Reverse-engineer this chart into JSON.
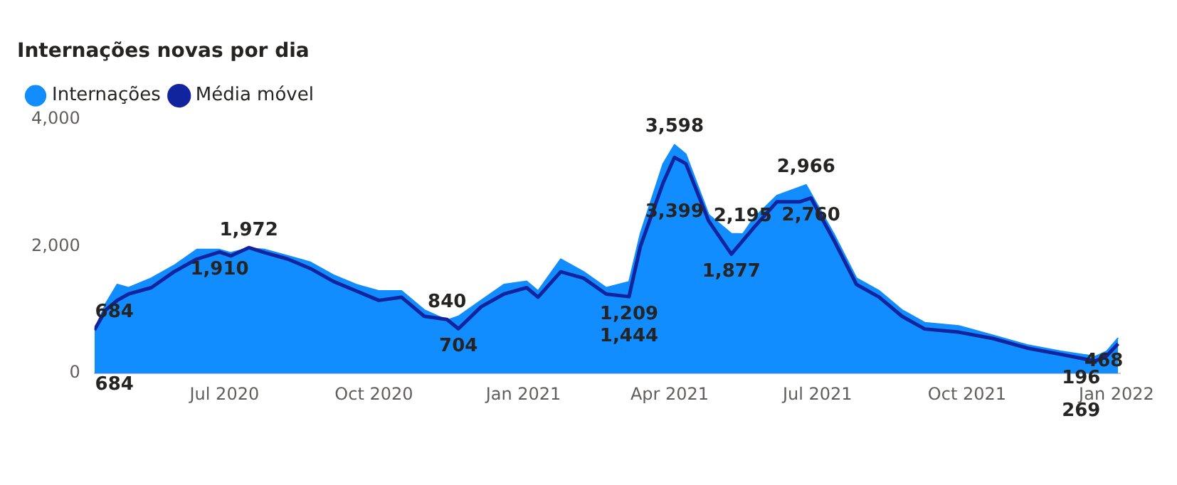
{
  "chart_data": {
    "type": "area",
    "title": "Internações novas por dia",
    "legend": "top left",
    "marker": "none",
    "grid": false,
    "xlim": [
      "2020-04-12",
      "2022-01-03"
    ],
    "xticks": [
      {
        "value": "2020-07-01",
        "label": "Jul 2020"
      },
      {
        "value": "2020-10-01",
        "label": "Oct 2020"
      },
      {
        "value": "2021-01-01",
        "label": "Jan 2021"
      },
      {
        "value": "2021-04-01",
        "label": "Apr 2021"
      },
      {
        "value": "2021-07-01",
        "label": "Jul 2021"
      },
      {
        "value": "2021-10-01",
        "label": "Oct 2021"
      },
      {
        "value": "2022-01-01",
        "label": "Jan 2022"
      }
    ],
    "ylim": [
      0,
      4000
    ],
    "yticks": [
      0,
      {
        "value": 2000,
        "label": "2,000"
      },
      {
        "value": 4000,
        "label": "4,000"
      }
    ],
    "series": [
      {
        "name": "Internações",
        "color": "#118dff",
        "x": [
          "2020-04-12",
          "2020-04-19",
          "2020-04-26",
          "2020-05-03",
          "2020-05-17",
          "2020-05-31",
          "2020-06-14",
          "2020-06-28",
          "2020-07-05",
          "2020-07-16",
          "2020-07-26",
          "2020-08-09",
          "2020-08-23",
          "2020-09-06",
          "2020-09-20",
          "2020-10-04",
          "2020-10-18",
          "2020-11-01",
          "2020-11-15",
          "2020-11-22",
          "2020-12-06",
          "2020-12-20",
          "2021-01-03",
          "2021-01-10",
          "2021-01-24",
          "2021-02-07",
          "2021-02-21",
          "2021-03-07",
          "2021-03-14",
          "2021-03-28",
          "2021-04-04",
          "2021-04-11",
          "2021-04-25",
          "2021-05-09",
          "2021-05-16",
          "2021-05-23",
          "2021-06-06",
          "2021-06-24",
          "2021-07-11",
          "2021-07-25",
          "2021-08-08",
          "2021-08-22",
          "2021-09-05",
          "2021-09-26",
          "2021-10-17",
          "2021-11-07",
          "2021-11-28",
          "2021-12-19",
          "2021-12-26",
          "2022-01-02"
        ],
        "values": [
          684,
          1100,
          1400,
          1350,
          1500,
          1700,
          1950,
          1950,
          1900,
          1972,
          1950,
          1850,
          1750,
          1550,
          1400,
          1300,
          1300,
          1000,
          840,
          900,
          1150,
          1400,
          1450,
          1300,
          1800,
          1600,
          1350,
          1444,
          2200,
          3300,
          3598,
          3450,
          2500,
          2200,
          2195,
          2450,
          2800,
          2966,
          2200,
          1500,
          1300,
          1000,
          800,
          750,
          600,
          450,
          350,
          269,
          350,
          560
        ]
      },
      {
        "name": "Média móvel",
        "type": "line",
        "color": "#12239e",
        "x": [
          "2020-04-12",
          "2020-04-19",
          "2020-04-26",
          "2020-05-03",
          "2020-05-17",
          "2020-05-31",
          "2020-06-14",
          "2020-06-28",
          "2020-07-05",
          "2020-07-16",
          "2020-07-26",
          "2020-08-09",
          "2020-08-23",
          "2020-09-06",
          "2020-09-20",
          "2020-10-04",
          "2020-10-18",
          "2020-11-01",
          "2020-11-15",
          "2020-11-22",
          "2020-12-06",
          "2020-12-20",
          "2021-01-03",
          "2021-01-10",
          "2021-01-24",
          "2021-02-07",
          "2021-02-21",
          "2021-03-07",
          "2021-03-14",
          "2021-03-28",
          "2021-04-04",
          "2021-04-11",
          "2021-04-25",
          "2021-05-09",
          "2021-05-23",
          "2021-06-06",
          "2021-06-20",
          "2021-06-27",
          "2021-07-11",
          "2021-07-25",
          "2021-08-08",
          "2021-08-22",
          "2021-09-05",
          "2021-09-26",
          "2021-10-17",
          "2021-11-07",
          "2021-11-28",
          "2021-12-19",
          "2021-12-26",
          "2022-01-02"
        ],
        "values": [
          684,
          1000,
          1150,
          1250,
          1350,
          1600,
          1800,
          1910,
          1850,
          1980,
          1900,
          1800,
          1650,
          1450,
          1300,
          1150,
          1200,
          900,
          850,
          704,
          1050,
          1250,
          1350,
          1200,
          1600,
          1500,
          1250,
          1209,
          2000,
          3000,
          3399,
          3300,
          2400,
          1877,
          2300,
          2700,
          2700,
          2760,
          2100,
          1400,
          1200,
          900,
          700,
          650,
          550,
          400,
          300,
          196,
          280,
          468
        ]
      }
    ],
    "annotations": [
      {
        "text": "684",
        "x": "2020-04-12",
        "y": 684
      },
      {
        "text": "684",
        "x": "2020-04-12",
        "y": 684
      },
      {
        "text": "1,910",
        "x": "2020-06-28",
        "y": 1910
      },
      {
        "text": "1,972",
        "x": "2020-07-16",
        "y": 1972
      },
      {
        "text": "704",
        "x": "2020-11-22",
        "y": 704
      },
      {
        "text": "840",
        "x": "2020-11-15",
        "y": 840
      },
      {
        "text": "1,209",
        "x": "2021-03-07",
        "y": 1209
      },
      {
        "text": "1,444",
        "x": "2021-03-07",
        "y": 1444
      },
      {
        "text": "3,598",
        "x": "2021-04-04",
        "y": 3598
      },
      {
        "text": "3,399",
        "x": "2021-04-04",
        "y": 3399
      },
      {
        "text": "1,877",
        "x": "2021-05-09",
        "y": 1877
      },
      {
        "text": "2,195",
        "x": "2021-05-16",
        "y": 2195
      },
      {
        "text": "2,966",
        "x": "2021-06-24",
        "y": 2966
      },
      {
        "text": "2,760",
        "x": "2021-06-27",
        "y": 2760
      },
      {
        "text": "196",
        "x": "2021-12-19",
        "y": 196
      },
      {
        "text": "269",
        "x": "2021-12-19",
        "y": 269
      },
      {
        "text": "468",
        "x": "2022-01-02",
        "y": 468
      }
    ]
  }
}
